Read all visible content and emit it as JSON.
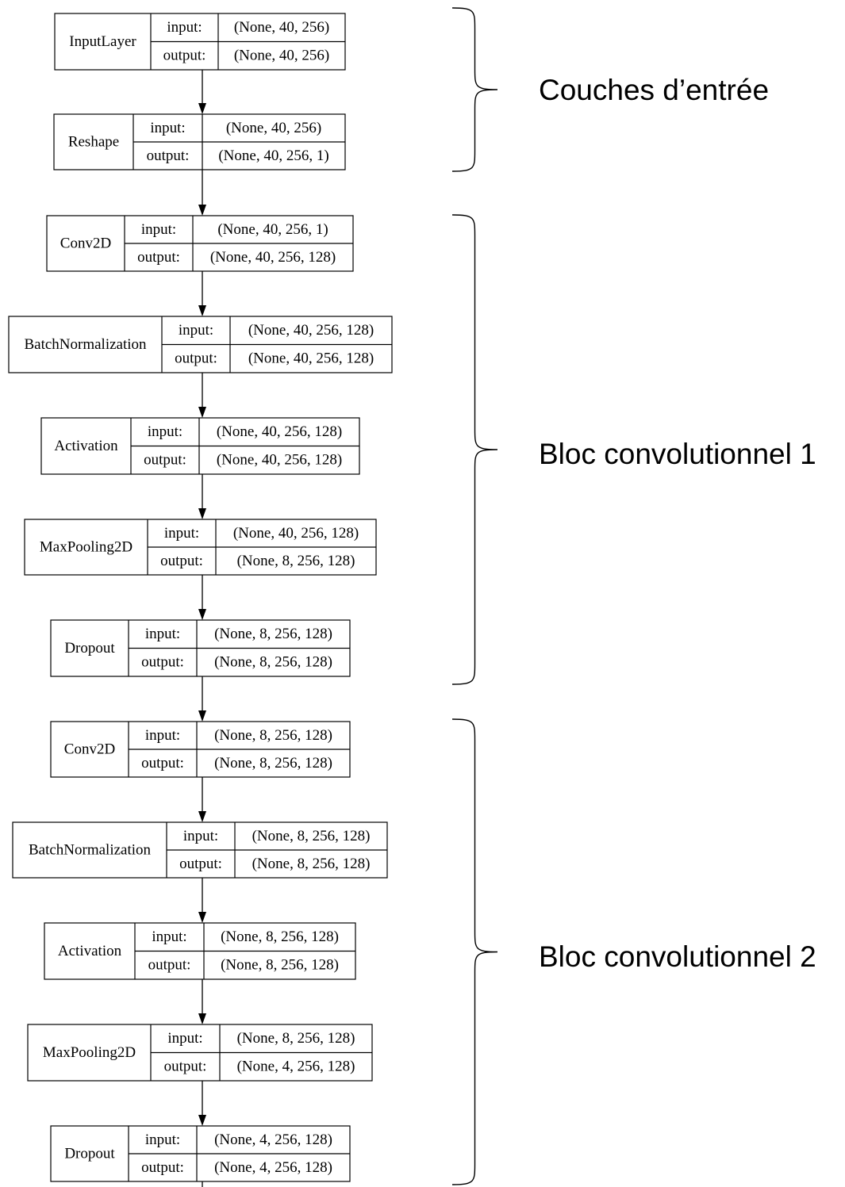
{
  "nodes": [
    {
      "id": "input-layer",
      "name": "InputLayer",
      "input_label": "input:",
      "output_label": "output:",
      "input_shape": "(None, 40, 256)",
      "output_shape": "(None, 40, 256)"
    },
    {
      "id": "reshape",
      "name": "Reshape",
      "input_label": "input:",
      "output_label": "output:",
      "input_shape": "(None, 40, 256)",
      "output_shape": "(None, 40, 256, 1)"
    },
    {
      "id": "conv2d-1",
      "name": "Conv2D",
      "input_label": "input:",
      "output_label": "output:",
      "input_shape": "(None, 40, 256, 1)",
      "output_shape": "(None, 40, 256, 128)"
    },
    {
      "id": "batchnorm-1",
      "name": "BatchNormalization",
      "input_label": "input:",
      "output_label": "output:",
      "input_shape": "(None, 40, 256, 128)",
      "output_shape": "(None, 40, 256, 128)"
    },
    {
      "id": "activation-1",
      "name": "Activation",
      "input_label": "input:",
      "output_label": "output:",
      "input_shape": "(None, 40, 256, 128)",
      "output_shape": "(None, 40, 256, 128)"
    },
    {
      "id": "maxpool-1",
      "name": "MaxPooling2D",
      "input_label": "input:",
      "output_label": "output:",
      "input_shape": "(None, 40, 256, 128)",
      "output_shape": "(None, 8, 256, 128)"
    },
    {
      "id": "dropout-1",
      "name": "Dropout",
      "input_label": "input:",
      "output_label": "output:",
      "input_shape": "(None, 8, 256, 128)",
      "output_shape": "(None, 8, 256, 128)"
    },
    {
      "id": "conv2d-2",
      "name": "Conv2D",
      "input_label": "input:",
      "output_label": "output:",
      "input_shape": "(None, 8, 256, 128)",
      "output_shape": "(None, 8, 256, 128)"
    },
    {
      "id": "batchnorm-2",
      "name": "BatchNormalization",
      "input_label": "input:",
      "output_label": "output:",
      "input_shape": "(None, 8, 256, 128)",
      "output_shape": "(None, 8, 256, 128)"
    },
    {
      "id": "activation-2",
      "name": "Activation",
      "input_label": "input:",
      "output_label": "output:",
      "input_shape": "(None, 8, 256, 128)",
      "output_shape": "(None, 8, 256, 128)"
    },
    {
      "id": "maxpool-2",
      "name": "MaxPooling2D",
      "input_label": "input:",
      "output_label": "output:",
      "input_shape": "(None, 8, 256, 128)",
      "output_shape": "(None, 4, 256, 128)"
    },
    {
      "id": "dropout-2",
      "name": "Dropout",
      "input_label": "input:",
      "output_label": "output:",
      "input_shape": "(None, 4, 256, 128)",
      "output_shape": "(None, 4, 256, 128)"
    }
  ],
  "groups": [
    {
      "id": "input-layers",
      "label": "Couches d’entrée"
    },
    {
      "id": "conv-block-1",
      "label": "Bloc convolutionnel 1"
    },
    {
      "id": "conv-block-2",
      "label": "Bloc convolutionnel 2"
    }
  ]
}
